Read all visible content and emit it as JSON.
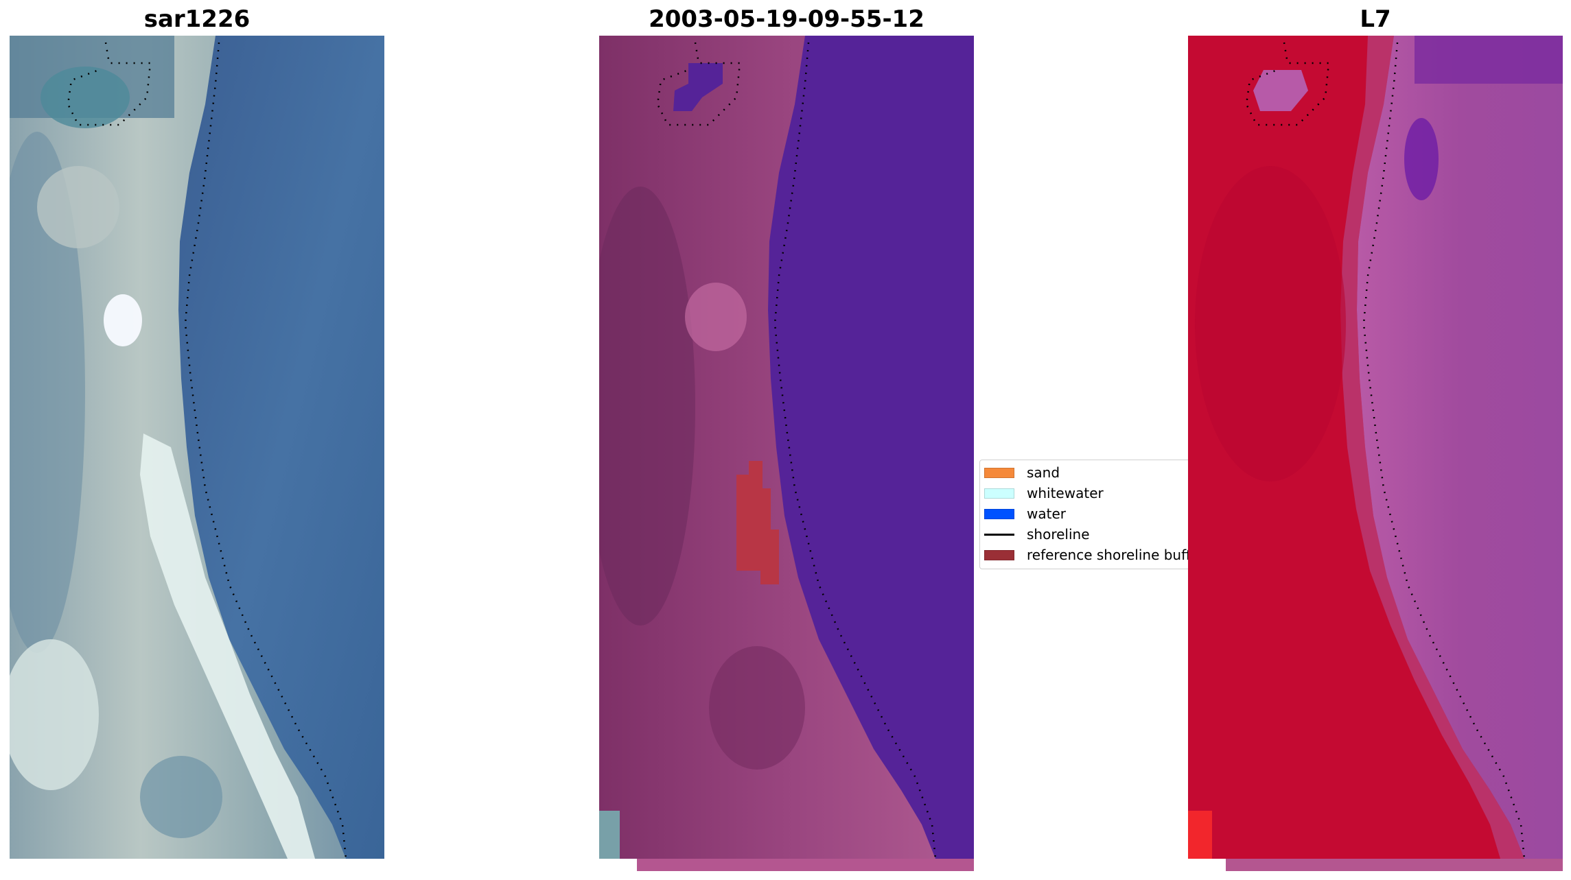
{
  "panels": [
    {
      "id": "rgb",
      "title": "sar1226",
      "icon": "rgb-satellite-image"
    },
    {
      "id": "classified",
      "title": "2003-05-19-09-55-12",
      "icon": "classified-image"
    },
    {
      "id": "index",
      "title": "L7",
      "icon": "water-index-image"
    }
  ],
  "legend": {
    "items": [
      {
        "label": "sand",
        "color": "#f5893a",
        "kind": "patch"
      },
      {
        "label": "whitewater",
        "color": "#ccffff",
        "kind": "patch"
      },
      {
        "label": "water",
        "color": "#0052ff",
        "kind": "patch"
      },
      {
        "label": "shoreline",
        "color": "#000000",
        "kind": "line"
      },
      {
        "label": "reference shoreline buffer",
        "color": "#9a2f36",
        "kind": "patch"
      }
    ]
  },
  "colors": {
    "rgb_land": "#a7b7b6",
    "rgb_water": "#3f6a9e",
    "rgb_whitecap": "#e8f4f2",
    "class_land": "#8f3d77",
    "class_water": "#552398",
    "class_buffer": "#b83645",
    "index_land": "#c40a32",
    "index_water": "#a24d9c",
    "index_deep": "#7a2a9f"
  }
}
